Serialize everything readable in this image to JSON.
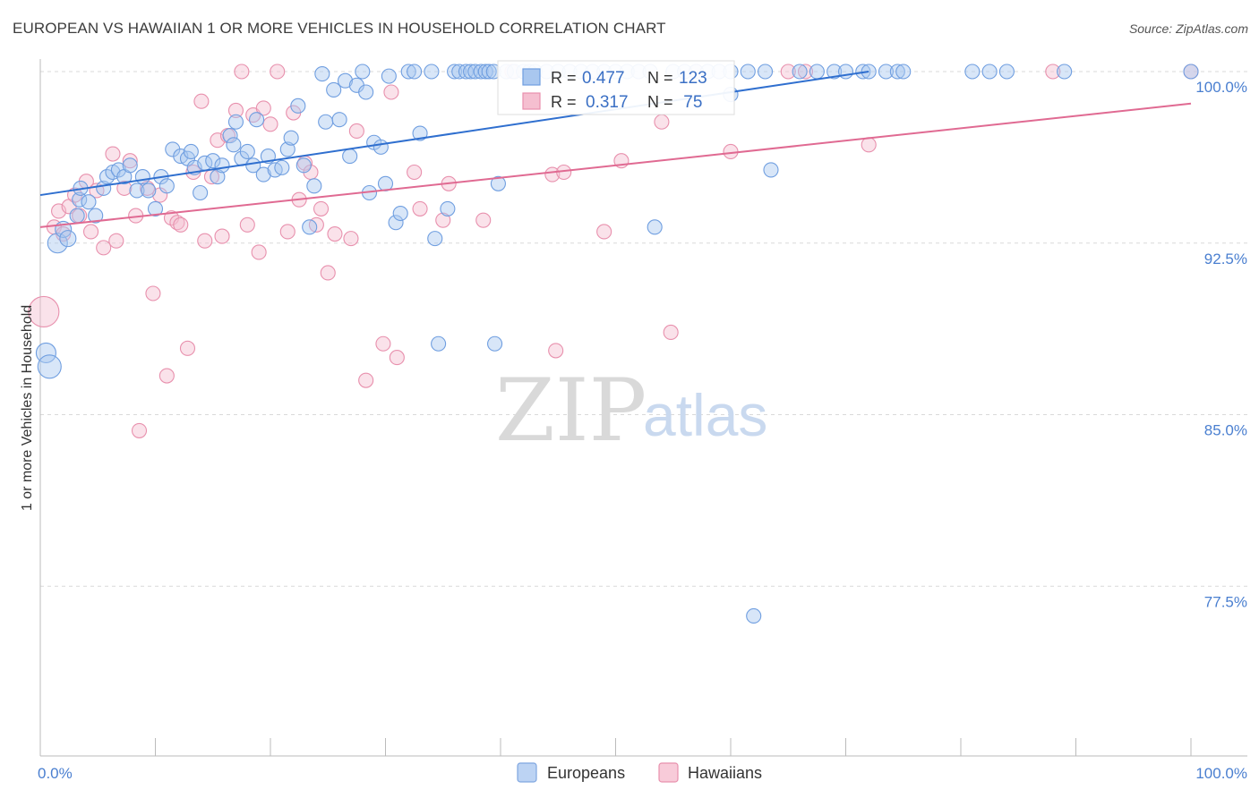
{
  "title": "EUROPEAN VS HAWAIIAN 1 OR MORE VEHICLES IN HOUSEHOLD CORRELATION CHART",
  "source": "Source: ZipAtlas.com",
  "watermark": {
    "zip": "ZIP",
    "atlas": "atlas"
  },
  "colors": {
    "blue": "#6f9ee0",
    "blue_fill": "#a9c7ef",
    "blue_line": "#2f6fcf",
    "pink": "#e890ad",
    "pink_fill": "#f5bfd0",
    "pink_line": "#e06a92",
    "tick_text": "#4a7fd0"
  },
  "stats": [
    {
      "r_label": "R =",
      "r": "0.477",
      "n_label": "N =",
      "n": "123"
    },
    {
      "r_label": "R =",
      "r": "0.317",
      "n_label": "N =",
      "n": " 75"
    }
  ],
  "legend": [
    "Europeans",
    "Hawaiians"
  ],
  "chart_data": {
    "type": "scatter",
    "title": "EUROPEAN VS HAWAIIAN 1 OR MORE VEHICLES IN HOUSEHOLD CORRELATION CHART",
    "xlabel": "",
    "ylabel": "1 or more Vehicles in Household",
    "x_tick_labels": [
      "0.0%",
      "100.0%"
    ],
    "y_tick_labels": [
      "100.0%",
      "92.5%",
      "85.0%",
      "77.5%"
    ],
    "y_ticks": [
      100.0,
      92.5,
      85.0,
      77.5
    ],
    "xlim": [
      0,
      100
    ],
    "ylim": [
      70.6,
      101.1
    ],
    "series": [
      {
        "name": "Europeans",
        "color": "#6f9ee0",
        "r": 0.477,
        "n": 123,
        "trend": {
          "x": [
            0,
            72
          ],
          "y": [
            94.6,
            100.0
          ]
        },
        "points": [
          [
            0.5,
            87.7,
            11
          ],
          [
            0.8,
            87.1,
            13
          ],
          [
            1.5,
            92.5,
            11
          ],
          [
            2.0,
            93.1,
            9
          ],
          [
            2.4,
            92.7,
            9
          ],
          [
            3.2,
            93.7,
            8
          ],
          [
            3.4,
            94.4,
            8
          ],
          [
            3.5,
            94.9,
            8
          ],
          [
            4.8,
            93.7,
            8
          ],
          [
            4.2,
            94.3,
            8
          ],
          [
            5.5,
            94.9,
            8
          ],
          [
            5.8,
            95.4,
            8
          ],
          [
            6.3,
            95.6,
            8
          ],
          [
            6.8,
            95.7,
            8
          ],
          [
            7.3,
            95.4,
            8
          ],
          [
            7.8,
            95.9,
            8
          ],
          [
            8.4,
            94.8,
            8
          ],
          [
            8.9,
            95.4,
            8
          ],
          [
            9.4,
            94.8,
            8
          ],
          [
            10.0,
            94.0,
            8
          ],
          [
            10.5,
            95.4,
            8
          ],
          [
            11.0,
            95.0,
            8
          ],
          [
            11.5,
            96.6,
            8
          ],
          [
            12.2,
            96.3,
            8
          ],
          [
            12.8,
            96.2,
            8
          ],
          [
            13.1,
            96.5,
            8
          ],
          [
            13.4,
            95.8,
            8
          ],
          [
            13.9,
            94.7,
            8
          ],
          [
            14.3,
            96.0,
            8
          ],
          [
            15.0,
            96.1,
            8
          ],
          [
            15.4,
            95.4,
            8
          ],
          [
            15.8,
            95.9,
            8
          ],
          [
            16.5,
            97.2,
            8
          ],
          [
            16.8,
            96.8,
            8
          ],
          [
            17.0,
            97.8,
            8
          ],
          [
            17.5,
            96.2,
            8
          ],
          [
            18.0,
            96.5,
            8
          ],
          [
            18.5,
            95.9,
            8
          ],
          [
            18.8,
            97.9,
            8
          ],
          [
            19.4,
            95.5,
            8
          ],
          [
            19.8,
            96.3,
            8
          ],
          [
            20.4,
            95.7,
            8
          ],
          [
            21.0,
            95.8,
            8
          ],
          [
            21.5,
            96.6,
            8
          ],
          [
            21.8,
            97.1,
            8
          ],
          [
            22.4,
            98.5,
            8
          ],
          [
            22.9,
            95.9,
            8
          ],
          [
            23.4,
            93.2,
            8
          ],
          [
            23.8,
            95.0,
            8
          ],
          [
            24.5,
            99.9,
            8
          ],
          [
            24.8,
            97.8,
            8
          ],
          [
            25.5,
            99.2,
            8
          ],
          [
            26.0,
            97.9,
            8
          ],
          [
            26.5,
            99.6,
            8
          ],
          [
            26.9,
            96.3,
            8
          ],
          [
            27.5,
            99.4,
            8
          ],
          [
            28.0,
            100.0,
            8
          ],
          [
            28.3,
            99.1,
            8
          ],
          [
            28.6,
            94.7,
            8
          ],
          [
            29.0,
            96.9,
            8
          ],
          [
            29.6,
            96.7,
            8
          ],
          [
            30.0,
            95.1,
            8
          ],
          [
            30.3,
            99.8,
            8
          ],
          [
            30.9,
            93.4,
            8
          ],
          [
            31.3,
            93.8,
            8
          ],
          [
            32.0,
            100.0,
            8
          ],
          [
            32.5,
            100.0,
            8
          ],
          [
            33.0,
            97.3,
            8
          ],
          [
            34.0,
            100.0,
            8
          ],
          [
            34.3,
            92.7,
            8
          ],
          [
            34.6,
            88.1,
            8
          ],
          [
            35.4,
            94.0,
            8
          ],
          [
            36.0,
            100.0,
            8
          ],
          [
            36.4,
            100.0,
            8
          ],
          [
            37.0,
            100.0,
            8
          ],
          [
            37.4,
            100.0,
            8
          ],
          [
            37.8,
            100.0,
            8
          ],
          [
            38.3,
            100.0,
            8
          ],
          [
            38.7,
            100.0,
            8
          ],
          [
            39.0,
            100.0,
            8
          ],
          [
            39.4,
            100.0,
            8
          ],
          [
            39.5,
            88.1,
            8
          ],
          [
            39.8,
            95.1,
            8
          ],
          [
            40.5,
            100.0,
            8
          ],
          [
            41.2,
            100.0,
            8
          ],
          [
            42.0,
            100.0,
            8
          ],
          [
            42.5,
            100.0,
            8
          ],
          [
            43.0,
            100.0,
            8
          ],
          [
            44.0,
            100.0,
            8
          ],
          [
            45.0,
            100.0,
            8
          ],
          [
            46.0,
            100.0,
            8
          ],
          [
            47.0,
            100.0,
            8
          ],
          [
            48.0,
            100.0,
            8
          ],
          [
            49.0,
            100.0,
            8
          ],
          [
            50.0,
            100.0,
            8
          ],
          [
            51.0,
            100.0,
            8
          ],
          [
            52.0,
            100.0,
            8
          ],
          [
            53.0,
            100.0,
            8
          ],
          [
            53.4,
            93.2,
            8
          ],
          [
            55.0,
            100.0,
            8
          ],
          [
            56.0,
            100.0,
            8
          ],
          [
            57.0,
            100.0,
            8
          ],
          [
            58.0,
            100.0,
            8
          ],
          [
            59.0,
            100.0,
            8
          ],
          [
            60.0,
            100.0,
            8
          ],
          [
            60.0,
            99.0,
            8
          ],
          [
            61.5,
            100.0,
            8
          ],
          [
            62.0,
            76.2,
            8
          ],
          [
            63.0,
            100.0,
            8
          ],
          [
            63.5,
            95.7,
            8
          ],
          [
            66.0,
            100.0,
            8
          ],
          [
            67.5,
            100.0,
            8
          ],
          [
            69.0,
            100.0,
            8
          ],
          [
            70.0,
            100.0,
            8
          ],
          [
            71.5,
            100.0,
            8
          ],
          [
            72.0,
            100.0,
            8
          ],
          [
            73.5,
            100.0,
            8
          ],
          [
            74.5,
            100.0,
            8
          ],
          [
            75.0,
            100.0,
            8
          ],
          [
            81.0,
            100.0,
            8
          ],
          [
            82.5,
            100.0,
            8
          ],
          [
            84.0,
            100.0,
            8
          ],
          [
            89.0,
            100.0,
            8
          ],
          [
            100.0,
            100.0,
            8
          ]
        ]
      },
      {
        "name": "Hawaiians",
        "color": "#e890ad",
        "r": 0.317,
        "n": 75,
        "trend": {
          "x": [
            0,
            100
          ],
          "y": [
            93.2,
            98.6
          ]
        },
        "points": [
          [
            0.3,
            89.5,
            17
          ],
          [
            1.2,
            93.2,
            8
          ],
          [
            1.6,
            93.9,
            8
          ],
          [
            2.0,
            92.9,
            8
          ],
          [
            2.5,
            94.1,
            8
          ],
          [
            3.0,
            94.6,
            8
          ],
          [
            3.4,
            93.7,
            8
          ],
          [
            4.0,
            95.2,
            8
          ],
          [
            4.4,
            93.0,
            8
          ],
          [
            4.9,
            94.8,
            8
          ],
          [
            5.5,
            92.3,
            8
          ],
          [
            6.3,
            96.4,
            8
          ],
          [
            6.6,
            92.6,
            8
          ],
          [
            7.3,
            94.9,
            8
          ],
          [
            7.8,
            96.1,
            8
          ],
          [
            8.3,
            93.7,
            8
          ],
          [
            8.6,
            84.3,
            8
          ],
          [
            9.3,
            94.9,
            8
          ],
          [
            9.8,
            90.3,
            8
          ],
          [
            10.4,
            94.6,
            8
          ],
          [
            11.0,
            86.7,
            8
          ],
          [
            11.4,
            93.6,
            8
          ],
          [
            11.9,
            93.4,
            8
          ],
          [
            12.2,
            93.3,
            8
          ],
          [
            12.8,
            87.9,
            8
          ],
          [
            13.3,
            95.6,
            8
          ],
          [
            14.0,
            98.7,
            8
          ],
          [
            14.3,
            92.6,
            8
          ],
          [
            14.9,
            95.4,
            8
          ],
          [
            15.4,
            97.0,
            8
          ],
          [
            15.8,
            92.8,
            8
          ],
          [
            16.3,
            97.2,
            8
          ],
          [
            17.0,
            98.3,
            8
          ],
          [
            17.5,
            100.0,
            8
          ],
          [
            18.0,
            93.3,
            8
          ],
          [
            18.5,
            98.1,
            8
          ],
          [
            19.0,
            92.1,
            8
          ],
          [
            19.4,
            98.4,
            8
          ],
          [
            20.0,
            97.7,
            8
          ],
          [
            20.6,
            100.0,
            8
          ],
          [
            21.5,
            93.0,
            8
          ],
          [
            22.0,
            98.2,
            8
          ],
          [
            22.5,
            94.4,
            8
          ],
          [
            23.0,
            96.0,
            8
          ],
          [
            23.5,
            95.6,
            8
          ],
          [
            24.0,
            93.3,
            8
          ],
          [
            24.4,
            94.0,
            8
          ],
          [
            25.0,
            91.2,
            8
          ],
          [
            25.6,
            92.9,
            8
          ],
          [
            27.0,
            92.7,
            8
          ],
          [
            27.5,
            97.4,
            8
          ],
          [
            28.3,
            86.5,
            8
          ],
          [
            29.8,
            88.1,
            8
          ],
          [
            30.5,
            99.1,
            8
          ],
          [
            31.0,
            87.5,
            8
          ],
          [
            32.5,
            95.6,
            8
          ],
          [
            33.0,
            94.0,
            8
          ],
          [
            35.0,
            93.5,
            8
          ],
          [
            35.5,
            95.1,
            8
          ],
          [
            38.5,
            93.5,
            8
          ],
          [
            41.0,
            100.0,
            8
          ],
          [
            44.5,
            95.5,
            8
          ],
          [
            44.8,
            87.8,
            8
          ],
          [
            45.5,
            95.6,
            8
          ],
          [
            49.0,
            93.0,
            8
          ],
          [
            50.5,
            96.1,
            8
          ],
          [
            54.0,
            97.8,
            8
          ],
          [
            54.8,
            88.6,
            8
          ],
          [
            60.0,
            96.5,
            8
          ],
          [
            65.0,
            100.0,
            8
          ],
          [
            66.5,
            100.0,
            8
          ],
          [
            72.0,
            96.8,
            8
          ],
          [
            88.0,
            100.0,
            8
          ],
          [
            100.0,
            100.0,
            8
          ],
          [
            57.0,
            100.0,
            8
          ]
        ]
      }
    ]
  }
}
